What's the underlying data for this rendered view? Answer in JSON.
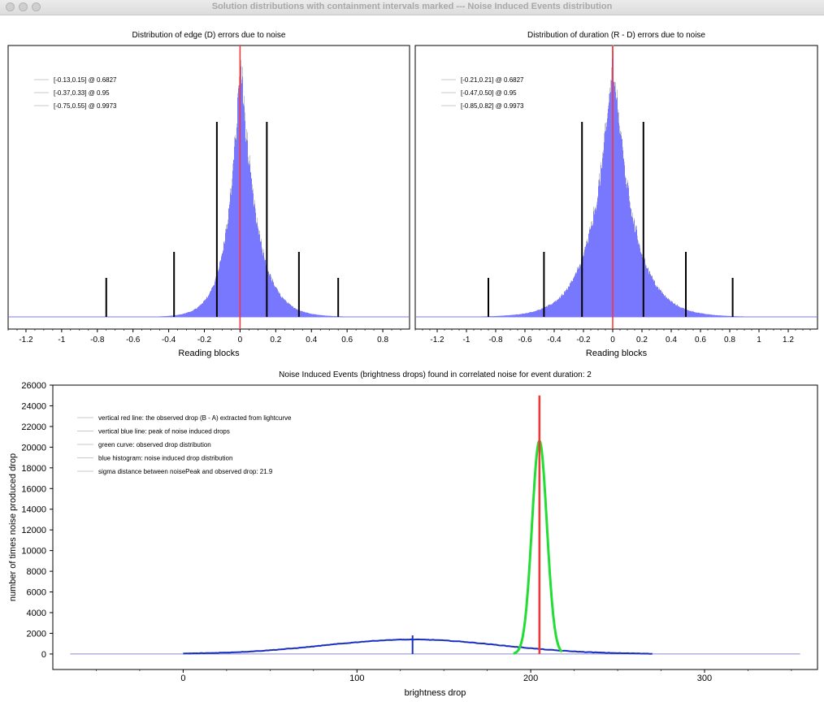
{
  "window": {
    "title": "Solution distributions with containment intervals marked --- Noise Induced Events distribution"
  },
  "colors": {
    "histogram_fill": "#7878ff",
    "histogram_edge": "#c4c4c4",
    "marker_red": "#ff3030",
    "interval_black": "#000000",
    "noise_curve": "#1a2fbf",
    "observed_curve": "#22dd33",
    "legend_line": "#c8c8c8"
  },
  "chart_data": [
    {
      "type": "bar",
      "title": "Distribution of edge (D) errors due to noise",
      "xlabel": "Reading blocks",
      "ylabel": "",
      "xlim": [
        -1.3,
        0.95
      ],
      "xticks": [
        "-1.2",
        "-1",
        "-0.8",
        "-0.6",
        "-0.4",
        "-0.2",
        "0",
        "0.2",
        "0.4",
        "0.6",
        "0.8"
      ],
      "xtick_values": [
        -1.2,
        -1.0,
        -0.8,
        -0.6,
        -0.4,
        -0.2,
        0,
        0.2,
        0.4,
        0.6,
        0.8
      ],
      "legend": [
        "[-0.13,0.15] @ 0.6827",
        "[-0.37,0.33] @ 0.95",
        "[-0.75,0.55] @ 0.9973"
      ],
      "legend_position": "top-left",
      "distribution": {
        "peak": 0.0,
        "left_scale": 0.072,
        "right_scale": 0.09
      },
      "red_line_x": 0.0,
      "intervals": [
        {
          "low": -0.13,
          "high": 0.15,
          "level": 0.6827
        },
        {
          "low": -0.37,
          "high": 0.33,
          "level": 0.95
        },
        {
          "low": -0.75,
          "high": 0.55,
          "level": 0.9973
        }
      ]
    },
    {
      "type": "bar",
      "title": "Distribution of duration (R - D) errors due to noise",
      "xlabel": "Reading blocks",
      "ylabel": "",
      "xlim": [
        -1.35,
        1.4
      ],
      "xticks": [
        "-1.2",
        "-1",
        "-0.8",
        "-0.6",
        "-0.4",
        "-0.2",
        "0",
        "0.2",
        "0.4",
        "0.6",
        "0.8",
        "1",
        "1.2"
      ],
      "xtick_values": [
        -1.2,
        -1.0,
        -0.8,
        -0.6,
        -0.4,
        -0.2,
        0,
        0.2,
        0.4,
        0.6,
        0.8,
        1.0,
        1.2
      ],
      "legend": [
        "[-0.21,0.21] @ 0.6827",
        "[-0.47,0.50] @ 0.95",
        "[-0.85,0.82] @ 0.9973"
      ],
      "legend_position": "top-left",
      "distribution": {
        "peak": 0.0,
        "left_scale": 0.14,
        "right_scale": 0.14
      },
      "red_line_x": 0.0,
      "intervals": [
        {
          "low": -0.21,
          "high": 0.21,
          "level": 0.6827
        },
        {
          "low": -0.47,
          "high": 0.5,
          "level": 0.95
        },
        {
          "low": -0.85,
          "high": 0.82,
          "level": 0.9973
        }
      ]
    },
    {
      "type": "line",
      "title": "Noise Induced Events (brightness drops) found in correlated noise for event duration: 2",
      "xlabel": "brightness drop",
      "ylabel": "number of times noise produced drop",
      "xlim": [
        -75,
        365
      ],
      "ylim": [
        -1500,
        26000
      ],
      "xticks": [
        "0",
        "100",
        "200",
        "300"
      ],
      "xtick_values": [
        0,
        100,
        200,
        300
      ],
      "yticks": [
        "0",
        "2000",
        "4000",
        "6000",
        "8000",
        "10000",
        "12000",
        "14000",
        "16000",
        "18000",
        "20000",
        "22000",
        "24000",
        "26000"
      ],
      "ytick_values": [
        0,
        2000,
        4000,
        6000,
        8000,
        10000,
        12000,
        14000,
        16000,
        18000,
        20000,
        22000,
        24000,
        26000
      ],
      "legend": [
        "vertical red line: the observed drop (B - A) extracted from lightcurve",
        "vertical blue line: peak of noise induced drops",
        "green curve: observed drop distribution",
        "blue histogram: noise induced drop distribution",
        "sigma distance between noisePeak and observed drop: 21.9"
      ],
      "legend_position": "top-left",
      "baseline_range": [
        -65,
        355
      ],
      "noise_curve": {
        "mean": 132,
        "sigma": 50,
        "peak": 1400,
        "range": [
          0,
          270
        ]
      },
      "noise_peak_x": 132,
      "noise_peak_line_top": 1800,
      "observed_curve": {
        "mean": 205,
        "sigma": 4.3,
        "peak": 20600,
        "range": [
          190,
          218
        ]
      },
      "observed_x": 205,
      "observed_line_top": 25000
    }
  ]
}
